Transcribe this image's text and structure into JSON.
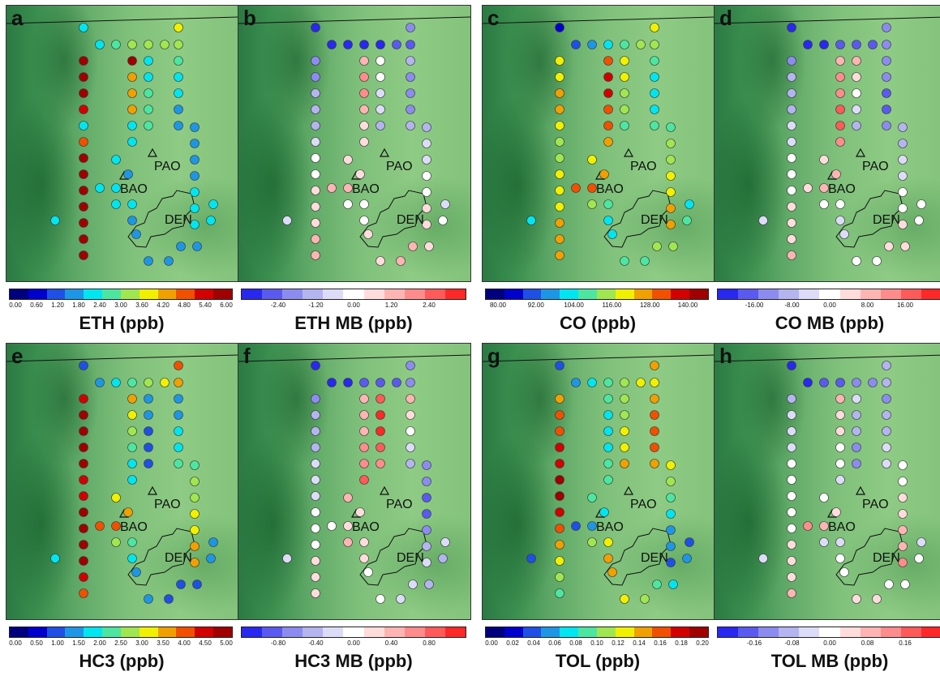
{
  "panels": [
    {
      "letter": "a",
      "title": "ETH (ppb)",
      "scale": "seq",
      "ticks": [
        "0.00",
        "0.60",
        "1.20",
        "1.80",
        "2.40",
        "3.00",
        "3.60",
        "4.20",
        "4.80",
        "5.40",
        "6.00"
      ]
    },
    {
      "letter": "b",
      "title": "ETH MB (ppb)",
      "scale": "div",
      "ticks": [
        "-2.40",
        "-1.20",
        "0.00",
        "1.20",
        "2.40"
      ]
    },
    {
      "letter": "c",
      "title": "CO (ppb)",
      "scale": "seq",
      "ticks": [
        "80.00",
        "92.00",
        "104.00",
        "116.00",
        "128.00",
        "140.00"
      ]
    },
    {
      "letter": "d",
      "title": "CO MB (ppb)",
      "scale": "div",
      "ticks": [
        "-16.00",
        "-8.00",
        "0.00",
        "8.00",
        "16.00"
      ]
    },
    {
      "letter": "e",
      "title": "HC3 (ppb)",
      "scale": "seq",
      "ticks": [
        "0.00",
        "0.50",
        "1.00",
        "1.50",
        "2.00",
        "2.50",
        "3.00",
        "3.50",
        "4.00",
        "4.50",
        "5.00"
      ]
    },
    {
      "letter": "f",
      "title": "HC3 MB (ppb)",
      "scale": "div",
      "ticks": [
        "-0.80",
        "-0.40",
        "0.00",
        "0.40",
        "0.80"
      ]
    },
    {
      "letter": "g",
      "title": "TOL (ppb)",
      "scale": "seq",
      "ticks": [
        "0.00",
        "0.02",
        "0.04",
        "0.06",
        "0.08",
        "0.10",
        "0.12",
        "0.14",
        "0.16",
        "0.18",
        "0.20"
      ]
    },
    {
      "letter": "h",
      "title": "TOL MB (ppb)",
      "scale": "div",
      "ticks": [
        "-0.16",
        "-0.08",
        "0.00",
        "0.08",
        "0.16"
      ]
    }
  ],
  "places": {
    "pao": "PAO",
    "bao": "BAO",
    "den": "DEN"
  },
  "colors": {
    "seq": [
      "#00007f",
      "#0000cd",
      "#1e50e6",
      "#1e96e6",
      "#00e6f0",
      "#4ce6a0",
      "#a0e650",
      "#f0f000",
      "#f0a000",
      "#f05000",
      "#d20000",
      "#a00000"
    ],
    "div": [
      "#2828f0",
      "#5a5af0",
      "#8c8cf0",
      "#b4b4f0",
      "#dcdcf8",
      "#ffffff",
      "#ffdcdc",
      "#ffb4b4",
      "#ff8c8c",
      "#ff5a5a",
      "#ff2828"
    ]
  },
  "track_values": {
    "a": [
      4,
      4,
      5,
      6,
      6,
      6,
      6,
      7,
      11,
      11,
      11,
      10,
      4,
      9,
      11,
      11,
      11,
      11,
      11,
      11,
      11,
      11,
      8,
      8,
      8,
      4,
      4,
      4,
      4,
      5,
      5,
      5,
      5,
      4,
      4,
      3,
      3,
      3,
      3,
      3,
      3,
      4,
      4,
      4,
      4,
      4,
      3,
      4,
      4,
      4,
      3,
      3,
      3,
      3,
      3,
      3,
      4,
      4,
      4,
      4
    ],
    "b": [
      0,
      0,
      0,
      0,
      0,
      1,
      1,
      2,
      2,
      2,
      3,
      3,
      3,
      4,
      5,
      5,
      6,
      6,
      6,
      7,
      7,
      7,
      8,
      8,
      7,
      6,
      6,
      5,
      5,
      4,
      4,
      3,
      3,
      2,
      2,
      2,
      3,
      3,
      4,
      4,
      5,
      5,
      6,
      6,
      7,
      7,
      6,
      6,
      5,
      5,
      5,
      6,
      6,
      7,
      7,
      6,
      5,
      4,
      4,
      3
    ],
    "c": [
      1,
      2,
      3,
      4,
      5,
      6,
      6,
      7,
      7,
      7,
      8,
      8,
      7,
      6,
      6,
      7,
      7,
      7,
      8,
      8,
      8,
      9,
      10,
      10,
      9,
      9,
      8,
      7,
      7,
      6,
      6,
      5,
      5,
      4,
      4,
      4,
      5,
      5,
      6,
      6,
      7,
      7,
      8,
      8,
      9,
      9,
      8,
      7,
      6,
      5,
      4,
      4,
      5,
      5,
      6,
      6,
      5,
      4,
      4,
      4
    ],
    "d": [
      0,
      0,
      0,
      1,
      1,
      1,
      2,
      2,
      2,
      3,
      3,
      3,
      4,
      4,
      5,
      5,
      5,
      6,
      6,
      6,
      7,
      7,
      8,
      8,
      9,
      9,
      8,
      7,
      6,
      5,
      4,
      3,
      2,
      2,
      1,
      1,
      2,
      3,
      3,
      4,
      4,
      5,
      5,
      6,
      6,
      7,
      7,
      6,
      5,
      5,
      4,
      4,
      5,
      5,
      6,
      6,
      5,
      5,
      4,
      4
    ],
    "e": [
      2,
      3,
      4,
      5,
      6,
      7,
      8,
      9,
      10,
      11,
      11,
      11,
      11,
      10,
      10,
      11,
      11,
      11,
      11,
      10,
      9,
      8,
      7,
      6,
      5,
      4,
      4,
      3,
      3,
      2,
      2,
      2,
      3,
      3,
      4,
      4,
      5,
      5,
      6,
      6,
      7,
      7,
      8,
      8,
      9,
      9,
      8,
      7,
      6,
      5,
      4,
      3,
      3,
      2,
      2,
      2,
      3,
      3,
      4,
      4
    ],
    "f": [
      0,
      0,
      0,
      1,
      1,
      1,
      2,
      2,
      2,
      3,
      3,
      3,
      4,
      4,
      4,
      5,
      5,
      5,
      6,
      6,
      6,
      7,
      7,
      7,
      8,
      8,
      9,
      9,
      10,
      10,
      9,
      8,
      7,
      6,
      5,
      4,
      3,
      2,
      2,
      1,
      1,
      2,
      3,
      4,
      5,
      6,
      6,
      7,
      7,
      6,
      6,
      5,
      5,
      4,
      4,
      3,
      3,
      4,
      4,
      5
    ],
    "g": [
      2,
      3,
      4,
      5,
      6,
      7,
      7,
      8,
      8,
      9,
      9,
      10,
      10,
      11,
      11,
      10,
      9,
      8,
      7,
      6,
      5,
      5,
      4,
      4,
      4,
      5,
      5,
      6,
      6,
      7,
      7,
      8,
      8,
      9,
      9,
      9,
      8,
      7,
      6,
      5,
      4,
      3,
      3,
      2,
      2,
      3,
      4,
      5,
      6,
      7,
      8,
      8,
      7,
      6,
      5,
      4,
      3,
      2,
      2,
      2
    ],
    "h": [
      0,
      0,
      1,
      1,
      2,
      2,
      3,
      3,
      3,
      4,
      4,
      4,
      5,
      5,
      5,
      5,
      5,
      6,
      6,
      6,
      7,
      7,
      6,
      6,
      5,
      5,
      4,
      4,
      3,
      3,
      2,
      2,
      2,
      3,
      3,
      4,
      4,
      5,
      5,
      6,
      6,
      7,
      7,
      8,
      8,
      7,
      6,
      5,
      4,
      4,
      5,
      5,
      6,
      6,
      5,
      5,
      5,
      4,
      4,
      4
    ]
  }
}
